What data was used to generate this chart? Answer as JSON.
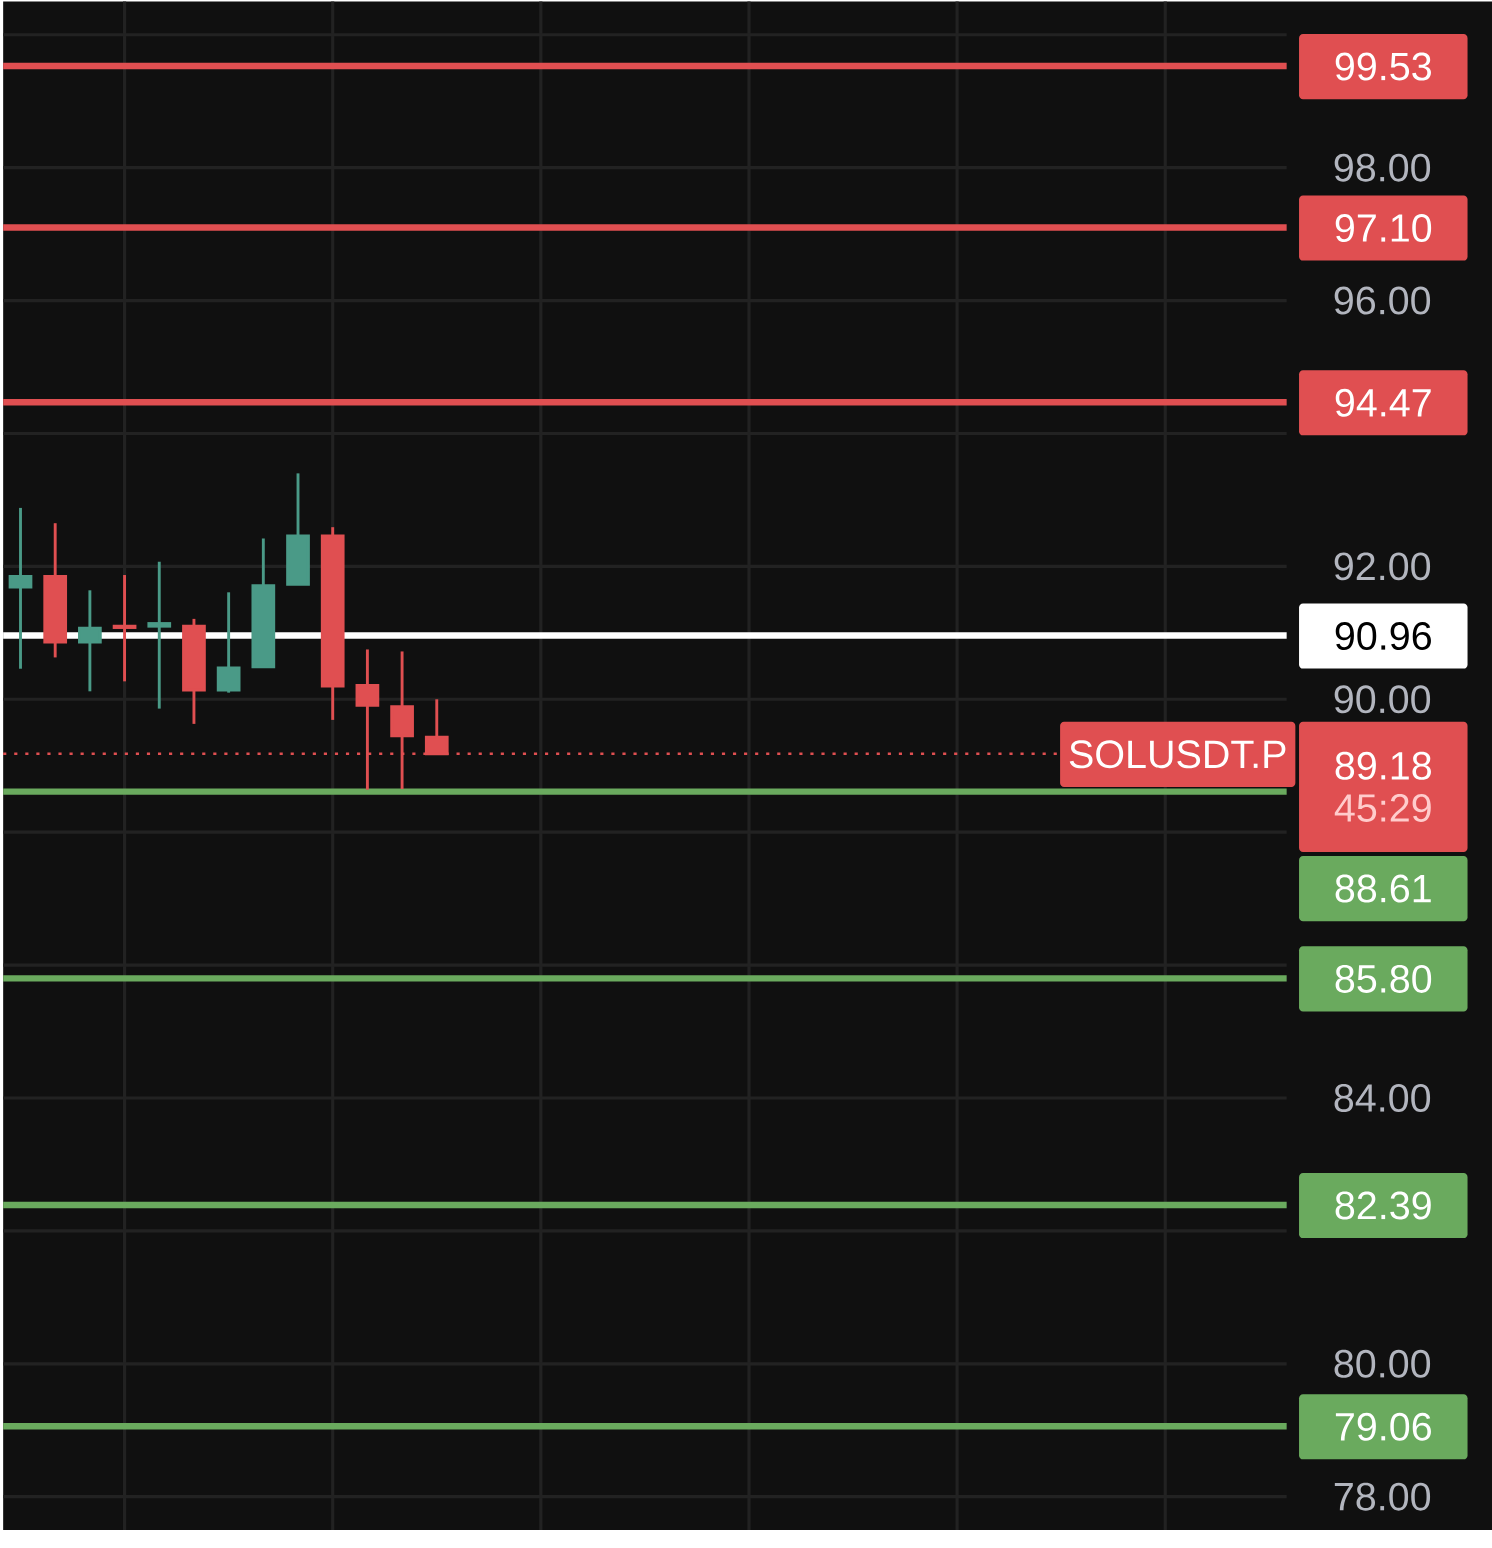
{
  "chart_data": {
    "type": "candlestick",
    "categories": [
      null,
      null,
      null,
      null,
      null,
      null,
      null,
      null,
      null,
      null,
      null,
      null,
      null,
      null,
      null,
      null,
      null,
      null,
      null,
      null,
      null,
      null,
      null,
      null,
      null,
      null,
      null,
      null,
      null,
      null,
      null,
      null,
      null,
      null,
      null,
      null,
      null
    ],
    "ohlc": [
      [
        91.69,
        92.88,
        90.46,
        91.85
      ],
      [
        91.85,
        92.65,
        90.63,
        90.86
      ],
      [
        90.86,
        91.64,
        90.12,
        91.07
      ],
      [
        91.1,
        91.87,
        90.27,
        91.08
      ],
      [
        91.1,
        92.07,
        89.86,
        91.14
      ],
      [
        91.1,
        91.21,
        89.63,
        90.14
      ],
      [
        90.14,
        91.61,
        90.1,
        90.47
      ],
      [
        90.49,
        92.42,
        90.49,
        91.71
      ],
      [
        91.73,
        93.4,
        91.73,
        92.46
      ],
      [
        92.46,
        92.59,
        89.69,
        90.2
      ],
      [
        90.21,
        90.75,
        88.64,
        89.91
      ],
      [
        89.89,
        90.72,
        88.65,
        89.45
      ],
      [
        89.43,
        90.0,
        89.18,
        89.18
      ],
      null,
      null,
      null,
      null,
      null,
      null,
      null,
      null,
      null,
      null,
      null,
      null,
      null,
      null,
      null,
      null,
      null,
      null,
      null,
      null,
      null,
      null,
      null,
      null
    ],
    "colors": [
      "#4a9a87",
      "#e04f51",
      "#4a9a87",
      "#e04f51",
      "#4a9a87",
      "#e04f51",
      "#4a9a87",
      "#4a9a87",
      "#4a9a87",
      "#e04f51",
      "#e04f51",
      "#e04f51",
      "#e04f51",
      null,
      null,
      null,
      null,
      null,
      null,
      null,
      null,
      null,
      null,
      null,
      null,
      null,
      null,
      null,
      null,
      null,
      null,
      null,
      null,
      null,
      null,
      null,
      null
    ],
    "ylim": [
      77.5,
      100.5
    ],
    "yticks": [
      {
        "value": 100,
        "label": null
      },
      {
        "value": 98,
        "label": "98.00"
      },
      {
        "value": 96,
        "label": "96.00"
      },
      {
        "value": 94,
        "label": null
      },
      {
        "value": 92,
        "label": "92.00"
      },
      {
        "value": 90,
        "label": "90.00"
      },
      {
        "value": 88,
        "label": null
      },
      {
        "value": 86,
        "label": null
      },
      {
        "value": 84,
        "label": "84.00"
      },
      {
        "value": 82,
        "label": null
      },
      {
        "value": 80,
        "label": "80.00"
      },
      {
        "value": 78,
        "label": "78.00"
      }
    ],
    "tick_labels": "y",
    "grid": true,
    "ref_lines": [
      {
        "axis": "y",
        "value": 99.53,
        "label": "99.53",
        "color": "#e04f51"
      },
      {
        "axis": "y",
        "value": 97.1,
        "label": "97.10",
        "color": "#e04f51"
      },
      {
        "axis": "y",
        "value": 94.47,
        "label": "94.47",
        "color": "#e04f51"
      },
      {
        "axis": "y",
        "value": 90.96,
        "label": "90.96",
        "color": "#ffffff"
      },
      {
        "axis": "y",
        "value": 89.18,
        "label": "89.18",
        "color": "#e04f51",
        "line_style": "dotted"
      },
      {
        "axis": "y",
        "value": 88.61,
        "label": "88.61",
        "color": "#6aaa5e"
      },
      {
        "axis": "y",
        "value": 85.8,
        "label": "85.80",
        "color": "#6aaa5e"
      },
      {
        "axis": "y",
        "value": 82.39,
        "label": "82.39",
        "color": "#6aaa5e"
      },
      {
        "axis": "y",
        "value": 79.06,
        "label": "79.06",
        "color": "#6aaa5e"
      }
    ],
    "annotations": [
      {
        "text": "SOLUSDT.P",
        "y": 89.18
      },
      "45:29"
    ]
  }
}
